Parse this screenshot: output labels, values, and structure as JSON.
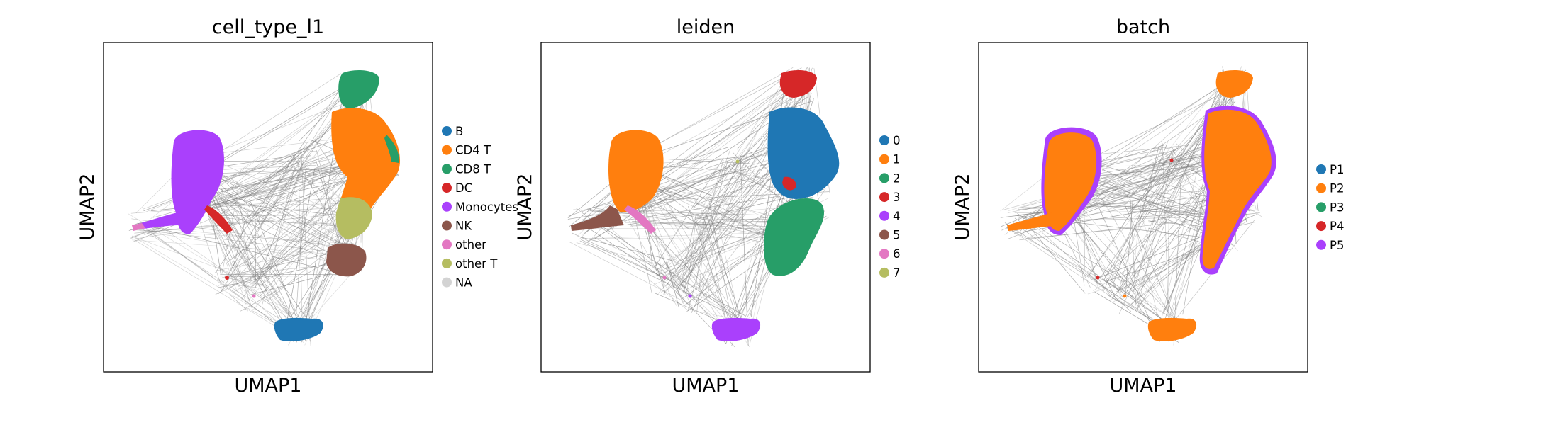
{
  "chart_data": [
    {
      "type": "scatter",
      "title": "cell_type_l1",
      "xlabel": "UMAP1",
      "ylabel": "UMAP2",
      "ticks": "none",
      "legend_position": "right",
      "edge_color": "#808080",
      "series": [
        {
          "name": "B",
          "color": "#1f77b4"
        },
        {
          "name": "CD4 T",
          "color": "#ff7f0e"
        },
        {
          "name": "CD8 T",
          "color": "#279e68"
        },
        {
          "name": "DC",
          "color": "#d62728"
        },
        {
          "name": "Monocytes",
          "color": "#aa40fc"
        },
        {
          "name": "NK",
          "color": "#8c564b"
        },
        {
          "name": "other",
          "color": "#e377c2"
        },
        {
          "name": "other T",
          "color": "#b5bd61"
        },
        {
          "name": "NA",
          "color": "#d3d3d3"
        }
      ]
    },
    {
      "type": "scatter",
      "title": "leiden",
      "xlabel": "UMAP1",
      "ylabel": "UMAP2",
      "ticks": "none",
      "legend_position": "right",
      "edge_color": "#808080",
      "series": [
        {
          "name": "0",
          "color": "#1f77b4"
        },
        {
          "name": "1",
          "color": "#ff7f0e"
        },
        {
          "name": "2",
          "color": "#279e68"
        },
        {
          "name": "3",
          "color": "#d62728"
        },
        {
          "name": "4",
          "color": "#aa40fc"
        },
        {
          "name": "5",
          "color": "#8c564b"
        },
        {
          "name": "6",
          "color": "#e377c2"
        },
        {
          "name": "7",
          "color": "#b5bd61"
        }
      ]
    },
    {
      "type": "scatter",
      "title": "batch",
      "xlabel": "UMAP1",
      "ylabel": "UMAP2",
      "ticks": "none",
      "legend_position": "right",
      "edge_color": "#808080",
      "series": [
        {
          "name": "P1",
          "color": "#1f77b4"
        },
        {
          "name": "P2",
          "color": "#ff7f0e"
        },
        {
          "name": "P3",
          "color": "#279e68"
        },
        {
          "name": "P4",
          "color": "#d62728"
        },
        {
          "name": "P5",
          "color": "#aa40fc"
        }
      ]
    }
  ]
}
